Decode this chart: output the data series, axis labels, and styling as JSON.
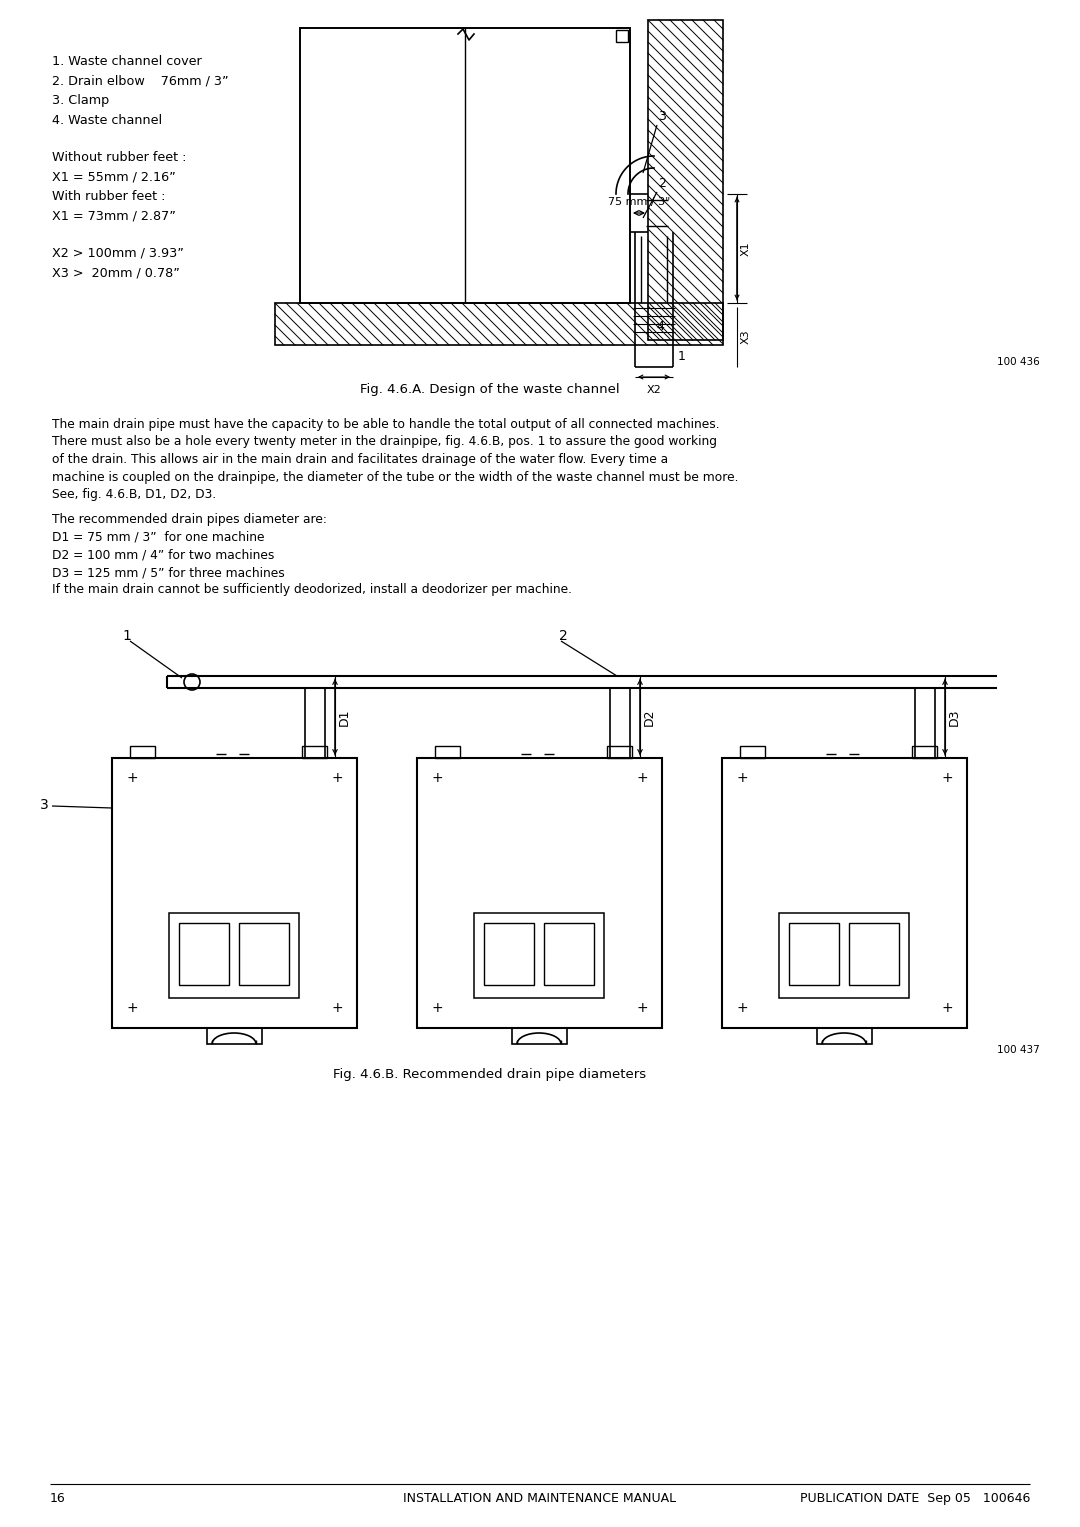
{
  "bg_color": "#ffffff",
  "text_color": "#000000",
  "line_color": "#000000",
  "page_width": 10.8,
  "page_height": 15.27,
  "left_text_lines_1": [
    "1. Waste channel cover",
    "2. Drain elbow    76mm / 3”",
    "3. Clamp",
    "4. Waste channel"
  ],
  "left_text_lines_2": [
    "Without rubber feet :",
    "X1 = 55mm / 2.16”",
    "With rubber feet :",
    "X1 = 73mm / 2.87”"
  ],
  "left_text_lines_3": [
    "X2 > 100mm / 3.93”",
    "X3 >  20mm / 0.78”"
  ],
  "fig_caption_A": "Fig. 4.6.A. Design of the waste channel",
  "fig_caption_B": "Fig. 4.6.B. Recommended drain pipe diameters",
  "body_paragraph": "The main drain pipe must have the capacity to be able to handle the total output of all connected machines. There must also be a hole every twenty meter in the drainpipe, fig. 4.6.B, pos. 1 to assure the good working of the drain. This allows air in the main drain and facilitates drainage of the water flow. Every time a machine is coupled on the drainpipe, the diameter of the tube or the width of the waste channel must be more. See, fig. 4.6.B, D1, D2, D3.",
  "drain_intro": "The recommended drain pipes diameter are:",
  "drain_lines": [
    "D1 = 75 mm / 3”  for one machine",
    "D2 = 100 mm / 4” for two machines",
    "D3 = 125 mm / 5” for three machines",
    "If the main drain cannot be sufficiently deodorized, install a deodorizer per machine."
  ],
  "footer_page": "16",
  "footer_center": "INSTALLATION AND MAINTENANCE MANUAL",
  "footer_right": "PUBLICATION DATE  Sep 05   100646",
  "ref_A": "100 436",
  "ref_B": "100 437"
}
